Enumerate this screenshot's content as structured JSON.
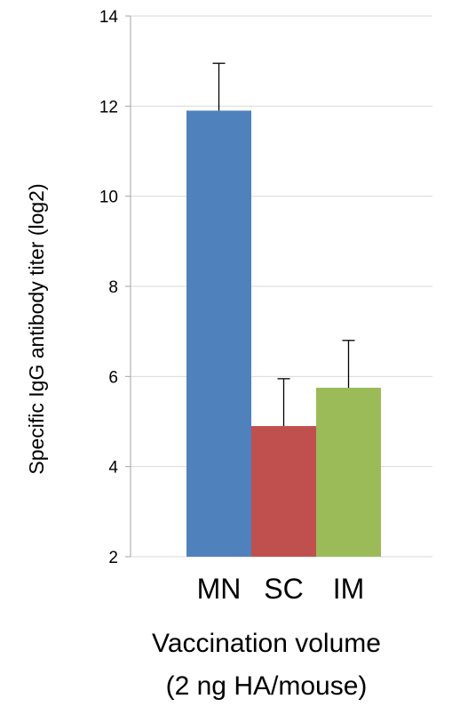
{
  "chart_data": {
    "type": "bar",
    "categories": [
      "MN",
      "SC",
      "IM"
    ],
    "values": [
      11.9,
      4.9,
      5.75
    ],
    "errors": [
      1.05,
      1.05,
      1.05
    ],
    "colors": [
      "#4f81bd",
      "#c0504d",
      "#9bbb59"
    ],
    "ylim": [
      2,
      14
    ],
    "yticks": [
      "2",
      "4",
      "6",
      "8",
      "10",
      "12",
      "14"
    ],
    "ylabel": "Specific IgG antibody titer (log2)",
    "xlabel_line1": "Vaccination volume",
    "xlabel_line2": "(2 ng HA/mouse)",
    "grid": true
  }
}
